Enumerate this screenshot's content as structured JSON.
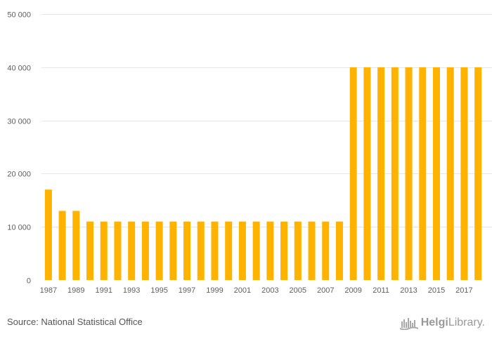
{
  "chart_data": {
    "type": "bar",
    "title": "",
    "xlabel": "",
    "ylabel": "",
    "categories": [
      "1987",
      "1988",
      "1989",
      "1990",
      "1991",
      "1992",
      "1993",
      "1994",
      "1995",
      "1996",
      "1997",
      "1998",
      "1999",
      "2000",
      "2001",
      "2002",
      "2003",
      "2004",
      "2005",
      "2006",
      "2007",
      "2008",
      "2009",
      "2010",
      "2011",
      "2012",
      "2013",
      "2014",
      "2015",
      "2016",
      "2017",
      "2018"
    ],
    "x_tick_labels": [
      "1987",
      "",
      "1989",
      "",
      "1991",
      "",
      "1993",
      "",
      "1995",
      "",
      "1997",
      "",
      "1999",
      "",
      "2001",
      "",
      "2003",
      "",
      "2005",
      "",
      "2007",
      "",
      "2009",
      "",
      "2011",
      "",
      "2013",
      "",
      "2015",
      "",
      "2017",
      ""
    ],
    "values": [
      17000,
      13000,
      13000,
      11000,
      11000,
      11000,
      11000,
      11000,
      11000,
      11000,
      11000,
      11000,
      11000,
      11000,
      11000,
      11000,
      11000,
      11000,
      11000,
      11000,
      11000,
      11000,
      40000,
      40000,
      40000,
      40000,
      40000,
      40000,
      40000,
      40000,
      40000,
      40000
    ],
    "ylim": [
      0,
      50000
    ],
    "y_ticks": [
      0,
      10000,
      20000,
      30000,
      40000,
      50000
    ],
    "y_tick_labels": [
      "0",
      "10 000",
      "20 000",
      "30 000",
      "40 000",
      "50 000"
    ],
    "grid": true,
    "legend": "none",
    "bar_color": "#FFB300"
  },
  "footer": {
    "source": "Source: National Statistical Office",
    "logo_bold": "Helgi",
    "logo_light": "Library."
  }
}
